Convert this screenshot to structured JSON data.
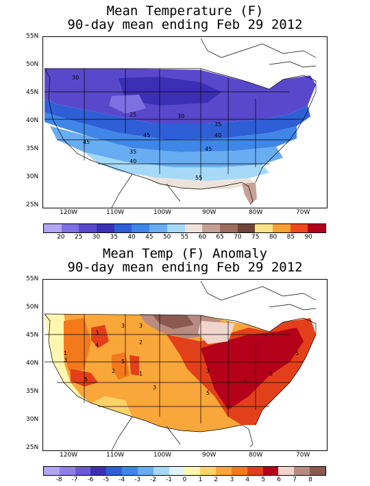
{
  "map1": {
    "title_line1": "Mean Temperature (F)",
    "title_line2": "90-day mean ending Feb 29 2012",
    "legend": {
      "labels": [
        "20",
        "25",
        "30",
        "35",
        "40",
        "45",
        "50",
        "55",
        "60",
        "65",
        "70",
        "75",
        "80",
        "85",
        "90"
      ],
      "colors": [
        "#b3a6f2",
        "#7f6fe0",
        "#5a48cc",
        "#3a2fb5",
        "#2f5fd6",
        "#3f86e8",
        "#68acf2",
        "#a5d9f7",
        "#eee3da",
        "#c6a296",
        "#9d6d60",
        "#6f4439",
        "#fbe387",
        "#f7a033",
        "#ef4a1f",
        "#b3001c"
      ]
    },
    "contour_labels": [
      "30",
      "25",
      "30",
      "35",
      "40",
      "45",
      "45",
      "35",
      "40",
      "45",
      "55"
    ]
  },
  "map2": {
    "title_line1": "Mean Temp (F) Anomaly",
    "title_line2": "90-day mean ending Feb 29 2012",
    "legend": {
      "labels": [
        "-8",
        "-7",
        "-6",
        "-5",
        "-4",
        "-3",
        "-2",
        "-1",
        "0",
        "1",
        "2",
        "3",
        "4",
        "5",
        "6",
        "7",
        "8"
      ],
      "colors": [
        "#b3a6f2",
        "#8f7ee6",
        "#6a58d4",
        "#3f2fb5",
        "#2f5fd6",
        "#3f86e8",
        "#68acf2",
        "#a5d9f7",
        "#e0f4fc",
        "#fff6b0",
        "#fcd36a",
        "#f9a63a",
        "#f37a1c",
        "#e2401a",
        "#b5001a",
        "#f0d5cc",
        "#b88c82",
        "#8a5a50"
      ]
    },
    "contour_labels": [
      "3",
      "3",
      "3",
      "2",
      "4",
      "1",
      "5",
      "3",
      "2",
      "1",
      "3",
      "5",
      "5",
      "4",
      "5",
      "3",
      "5"
    ]
  },
  "axes": {
    "lat_labels": [
      "55N",
      "50N",
      "45N",
      "40N",
      "35N",
      "30N",
      "25N"
    ],
    "lon_labels": [
      "120W",
      "110W",
      "100W",
      "90W",
      "80W",
      "70W"
    ]
  },
  "colors": {
    "frame": "#000000",
    "land_blank": "#ffffff"
  }
}
